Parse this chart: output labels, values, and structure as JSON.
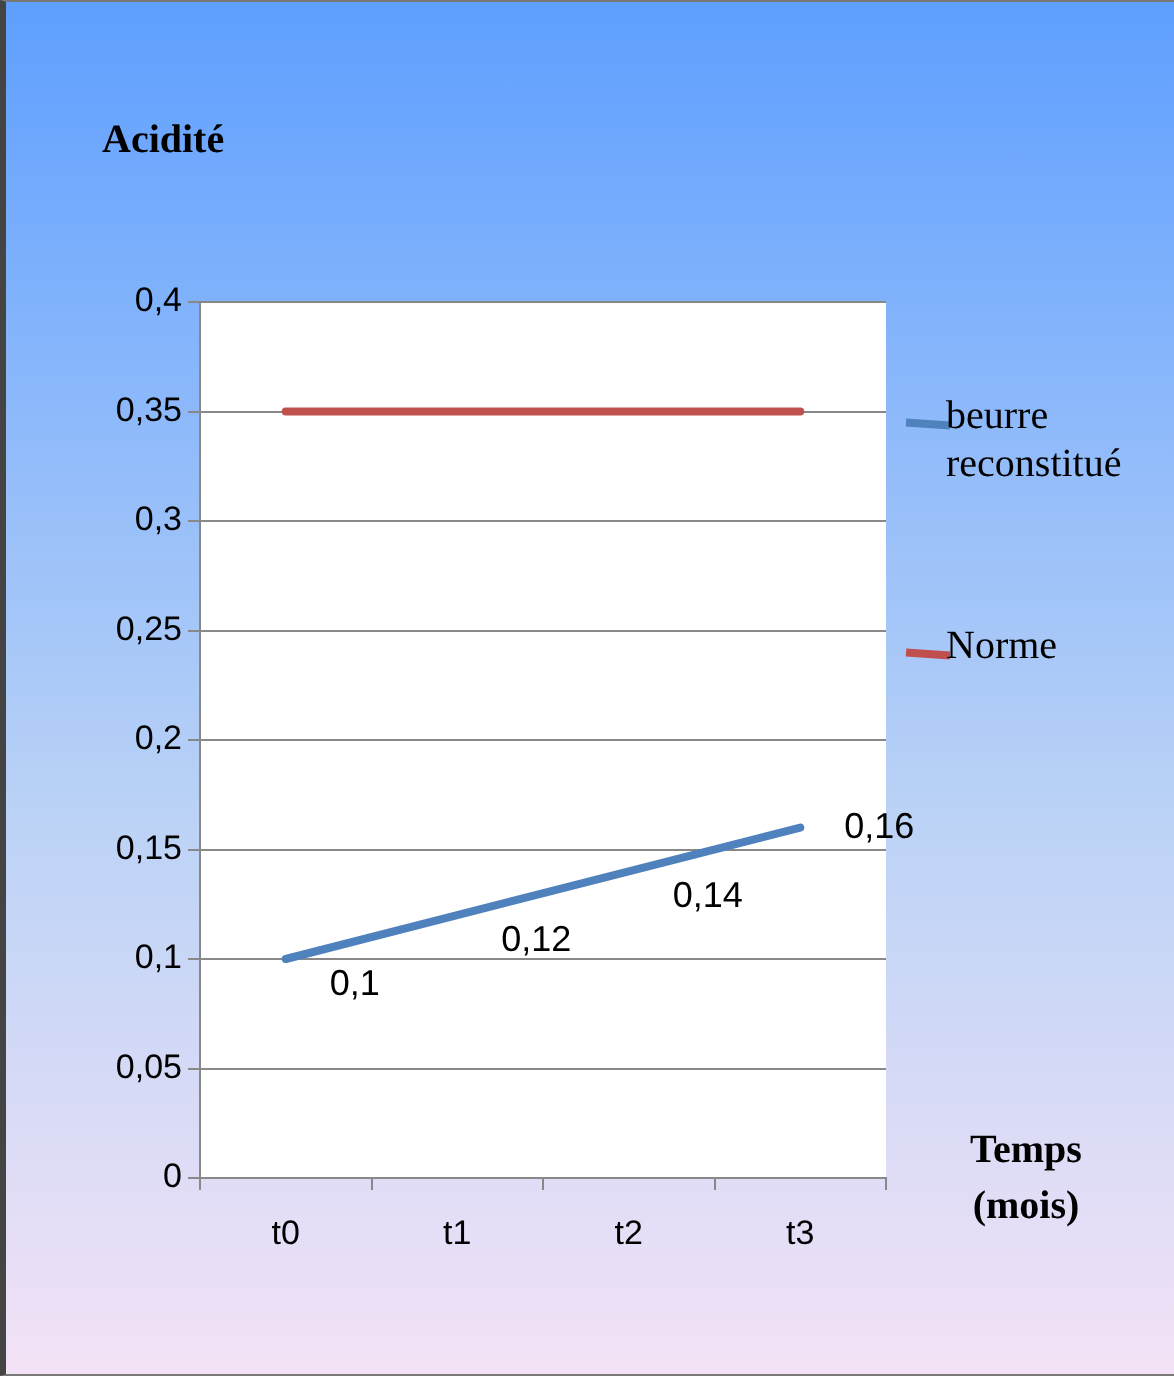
{
  "chart_data": {
    "type": "line",
    "ylabel": "Acidité",
    "xlabel": "Temps (mois)",
    "categories": [
      "t0",
      "t1",
      "t2",
      "t3"
    ],
    "series": [
      {
        "name": "beurre reconstitué",
        "color": "#4f81bd",
        "values": [
          0.1,
          0.12,
          0.14,
          0.16
        ],
        "value_labels": [
          "0,1",
          "0,12",
          "0,14",
          "0,16"
        ]
      },
      {
        "name": "Norme",
        "color": "#c0504d",
        "values": [
          0.35,
          0.35,
          0.35,
          0.35
        ]
      }
    ],
    "ylim": [
      0,
      0.4
    ],
    "yticks": [
      0,
      {
        "value": 0.05,
        "label": "0,05"
      },
      {
        "value": 0.1,
        "label": "0,1"
      },
      {
        "value": 0.15,
        "label": "0,15"
      },
      {
        "value": 0.2,
        "label": "0,2"
      },
      {
        "value": 0.25,
        "label": "0,25"
      },
      {
        "value": 0.3,
        "label": "0,3"
      },
      {
        "value": 0.35,
        "label": "0,35"
      },
      {
        "value": 0.4,
        "label": "0,4"
      }
    ],
    "grid": "y",
    "legend": "right",
    "marker": "none",
    "line_style": "solid"
  }
}
